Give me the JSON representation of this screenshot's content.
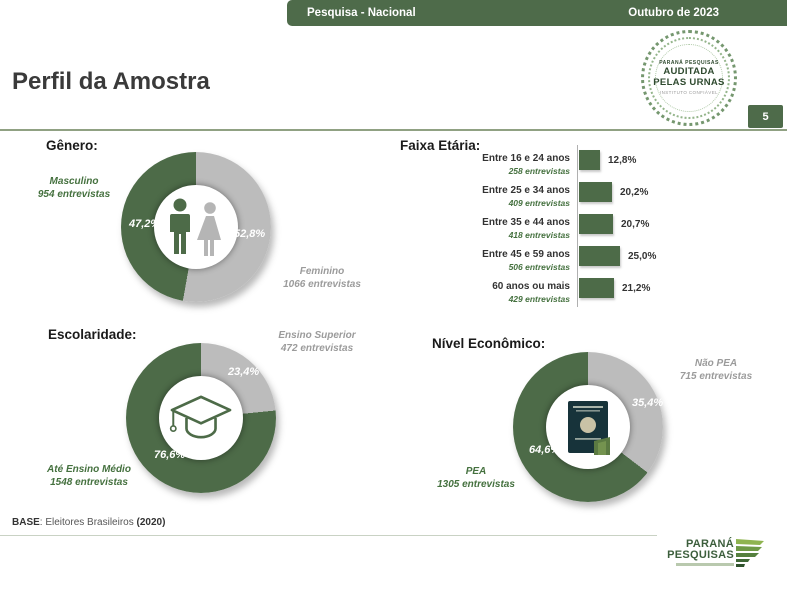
{
  "colors": {
    "green": "#4d6b48",
    "gray": "#bcbcbc",
    "dark_green_text": "#45713f",
    "gray_text": "#9b9b9b",
    "header_green": "#4e6b4a"
  },
  "header": {
    "left": "Pesquisa - Nacional",
    "right": "Outubro de 2023"
  },
  "title": "Perfil da Amostra",
  "page_number": "5",
  "stamp": {
    "top": "PARANÁ PESQUISAS",
    "main1": "AUDITADA",
    "main2": "PELAS URNAS",
    "sub": "INSTITUTO CONFIÁVEL"
  },
  "sections": {
    "gender": {
      "heading": "Gênero:",
      "male_label": "Masculino",
      "male_count": "954 entrevistas",
      "male_pct": "47,2%",
      "female_label": "Feminino",
      "female_count": "1066 entrevistas",
      "female_pct": "52,8%",
      "donut": {
        "first_pct": 52.8
      }
    },
    "age": {
      "heading": "Faixa Etária:",
      "rows": [
        {
          "label": "Entre 16 e 24 anos",
          "count": "258 entrevistas",
          "pct": "12,8%",
          "value": 12.8
        },
        {
          "label": "Entre 25 e 34 anos",
          "count": "409 entrevistas",
          "pct": "20,2%",
          "value": 20.2
        },
        {
          "label": "Entre 35 e 44 anos",
          "count": "418 entrevistas",
          "pct": "20,7%",
          "value": 20.7
        },
        {
          "label": "Entre 45 e 59 anos",
          "count": "506 entrevistas",
          "pct": "25,0%",
          "value": 25.0
        },
        {
          "label": "60 anos ou mais",
          "count": "429 entrevistas",
          "pct": "21,2%",
          "value": 21.2
        }
      ]
    },
    "education": {
      "heading": "Escolaridade:",
      "top_label": "Ensino Superior",
      "top_count": "472 entrevistas",
      "top_pct": "23,4%",
      "bottom_label": "Até Ensino Médio",
      "bottom_count": "1548 entrevistas",
      "bottom_pct": "76,6%",
      "donut": {
        "first_pct": 23.4
      }
    },
    "economic": {
      "heading": "Nível Econômico:",
      "top_label": "Não PEA",
      "top_count": "715 entrevistas",
      "top_pct": "35,4%",
      "bottom_label": "PEA",
      "bottom_count": "1305 entrevistas",
      "bottom_pct": "64,6%",
      "donut": {
        "first_pct": 35.4
      }
    }
  },
  "footer": {
    "base_label": "BASE",
    "base_text": ": Eleitores Brasileiros ",
    "base_bold": "(2020)"
  },
  "logo": {
    "line1": "PARANÁ",
    "line2": "PESQUISAS"
  },
  "chart_data": [
    {
      "type": "pie",
      "title": "Gênero",
      "labels": [
        "Masculino",
        "Feminino"
      ],
      "values": [
        47.2,
        52.8
      ],
      "counts": [
        954,
        1066
      ],
      "colors": [
        "#4d6b48",
        "#bcbcbc"
      ],
      "donut": true,
      "unit": "%"
    },
    {
      "type": "bar",
      "title": "Faixa Etária",
      "orientation": "horizontal",
      "categories": [
        "Entre 16 e 24 anos",
        "Entre 25 e 34 anos",
        "Entre 35 e 44 anos",
        "Entre 45 e 59 anos",
        "60 anos ou mais"
      ],
      "values": [
        12.8,
        20.2,
        20.7,
        25.0,
        21.2
      ],
      "counts": [
        258,
        409,
        418,
        506,
        429
      ],
      "unit": "%",
      "bar_color": "#4d6b48",
      "xlim": [
        0,
        30
      ]
    },
    {
      "type": "pie",
      "title": "Escolaridade",
      "labels": [
        "Até Ensino Médio",
        "Ensino Superior"
      ],
      "values": [
        76.6,
        23.4
      ],
      "counts": [
        1548,
        472
      ],
      "colors": [
        "#4d6b48",
        "#bcbcbc"
      ],
      "donut": true,
      "unit": "%"
    },
    {
      "type": "pie",
      "title": "Nível Econômico",
      "labels": [
        "PEA",
        "Não PEA"
      ],
      "values": [
        64.6,
        35.4
      ],
      "counts": [
        1305,
        715
      ],
      "colors": [
        "#4d6b48",
        "#bcbcbc"
      ],
      "donut": true,
      "unit": "%"
    }
  ]
}
